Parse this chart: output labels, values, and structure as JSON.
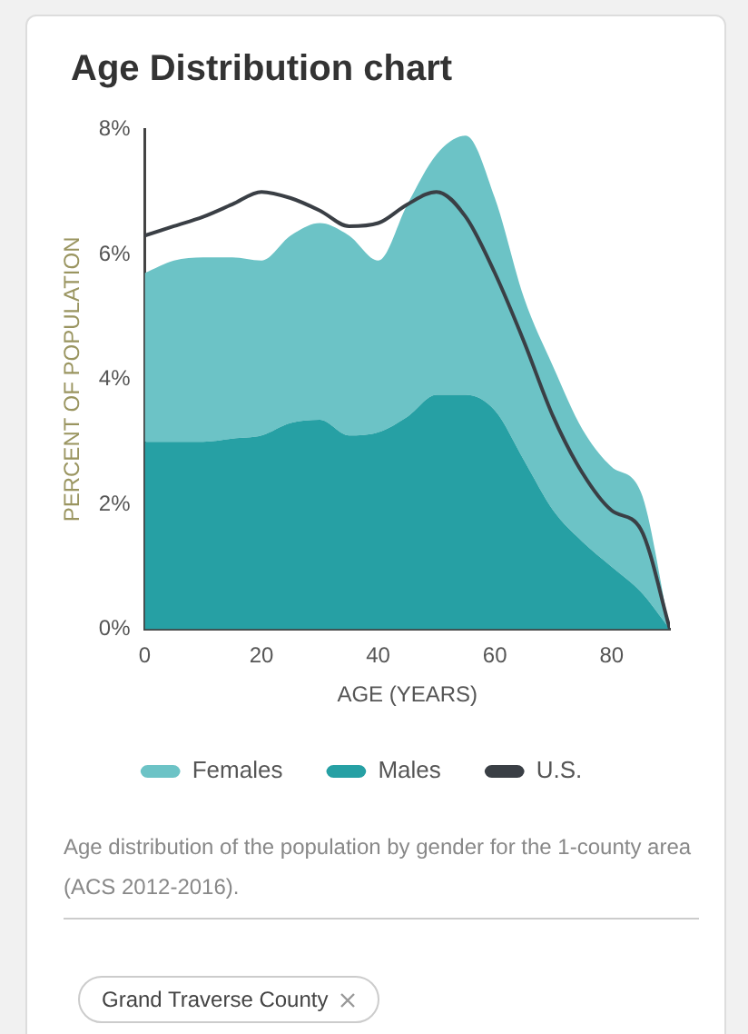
{
  "chart_data": {
    "type": "area",
    "title": "Age Distribution chart",
    "xlabel": "AGE (YEARS)",
    "ylabel": "PERCENT OF POPULATION",
    "x": [
      0,
      5,
      10,
      15,
      20,
      25,
      30,
      35,
      40,
      45,
      50,
      55,
      60,
      65,
      70,
      75,
      80,
      85,
      90
    ],
    "stacked": true,
    "series": [
      {
        "name": "Males",
        "color": "#26a0a4",
        "values": [
          3.0,
          3.0,
          3.0,
          3.05,
          3.1,
          3.3,
          3.35,
          3.1,
          3.15,
          3.4,
          3.75,
          3.75,
          3.5,
          2.7,
          1.9,
          1.4,
          1.0,
          0.6,
          0
        ]
      },
      {
        "name": "Females",
        "color": "#6cc3c6",
        "values": [
          2.7,
          2.9,
          2.95,
          2.9,
          2.8,
          3.0,
          3.15,
          3.2,
          2.75,
          3.4,
          3.85,
          4.15,
          3.4,
          2.6,
          2.3,
          1.8,
          1.6,
          1.6,
          0
        ]
      },
      {
        "name": "U.S.",
        "type": "line",
        "color": "#3a3f45",
        "values": [
          6.3,
          6.45,
          6.6,
          6.8,
          7.0,
          6.9,
          6.7,
          6.45,
          6.5,
          6.8,
          7.0,
          6.6,
          5.7,
          4.6,
          3.4,
          2.5,
          1.9,
          1.6,
          0
        ]
      }
    ],
    "xlim": [
      0,
      90
    ],
    "xticks": [
      0,
      20,
      40,
      60,
      80
    ],
    "ylim": [
      0,
      8
    ],
    "yticks": [
      {
        "value": 0,
        "label": "0%"
      },
      {
        "value": 2,
        "label": "2%"
      },
      {
        "value": 4,
        "label": "4%"
      },
      {
        "value": 6,
        "label": "6%"
      },
      {
        "value": 8,
        "label": "8%"
      }
    ],
    "grid": false,
    "legend": "bottom",
    "marker": "none",
    "line_style": "solid",
    "annotations": [
      "Age distribution of the population by gender for the 1-county area (ACS 2012-2016).",
      "Grand Traverse County"
    ]
  }
}
